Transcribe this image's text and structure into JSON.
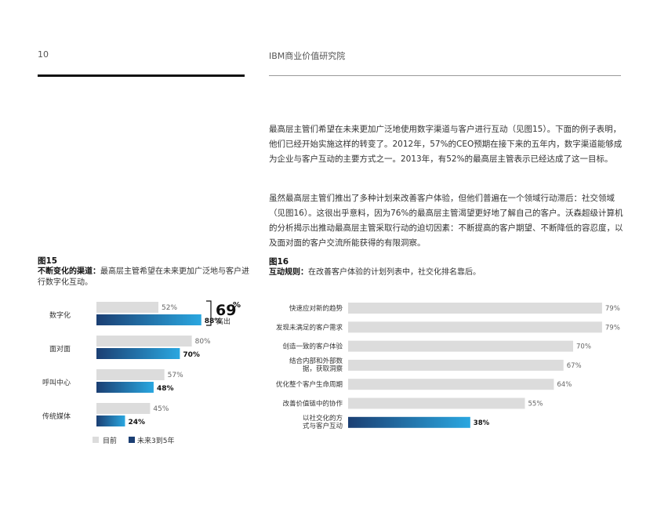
{
  "header": {
    "page_number": "10",
    "title": "IBM商业价值研究院"
  },
  "body": {
    "paragraph1": "最高层主管们希望在未来更加广泛地使用数字渠道与客户进行互动（见图15）。下面的例子表明，他们已经开始实施这样的转变了。2012年，57%的CEO预期在接下来的五年内，数字渠道能够成为企业与客户互动的主要方式之一。2013年，有52%的最高层主管表示已经达成了这一目标。",
    "paragraph2": "虽然最高层主管们推出了多种计划来改善客户体验，但他们普遍在一个领域行动滞后：社交领域（见图16）。这很出乎意料，因为76%的最高层主管渴望更好地了解自己的客户。沃森超级计算机的分析揭示出推动最高层主管采取行动的迫切因素：不断提高的客户期望、不断降低的容忍度，以及面对面的客户交流所能获得的有限洞察。"
  },
  "figure15": {
    "label": "图15",
    "caption_bold": "不断变化的渠道：",
    "caption_rest": "最高层主管希望在未来更加广泛地与客户进行数字化互动。",
    "callout": {
      "value": "69",
      "unit": "%",
      "text": "高出"
    },
    "legend": [
      "目前",
      "未来3到5年"
    ]
  },
  "figure16": {
    "label": "图16",
    "caption_bold": "互动规则：",
    "caption_rest": "在改善客户体验的计划列表中，社交化排名靠后。"
  },
  "colors": {
    "bar_current": "#dcdcdc",
    "bar_future_start": "#1b3f73",
    "bar_future_end": "#2aa7e0",
    "text_dark": "#111111"
  },
  "chart_data": [
    {
      "type": "bar",
      "orientation": "horizontal",
      "title": "",
      "categories": [
        "数字化",
        "面对面",
        "呼叫中心",
        "传统媒体"
      ],
      "series": [
        {
          "name": "目前",
          "values": [
            52,
            80,
            57,
            45
          ]
        },
        {
          "name": "未来3到5年",
          "values": [
            88,
            70,
            48,
            24
          ]
        }
      ],
      "xlim": [
        0,
        100
      ],
      "grid": false,
      "legend": "bottom"
    },
    {
      "type": "bar",
      "orientation": "horizontal",
      "title": "",
      "categories": [
        "快速应对新的趋势",
        "发现未满足的客户需求",
        "创造一致的客户体验",
        "结合内部和外部数据，获取洞察",
        "优化整个客户生命周期",
        "改善价值链中的协作",
        "以社交化的方式与客户互动"
      ],
      "values": [
        79,
        79,
        70,
        67,
        64,
        55,
        38
      ],
      "highlight_index": 6,
      "xlim": [
        0,
        100
      ],
      "grid": false
    }
  ]
}
